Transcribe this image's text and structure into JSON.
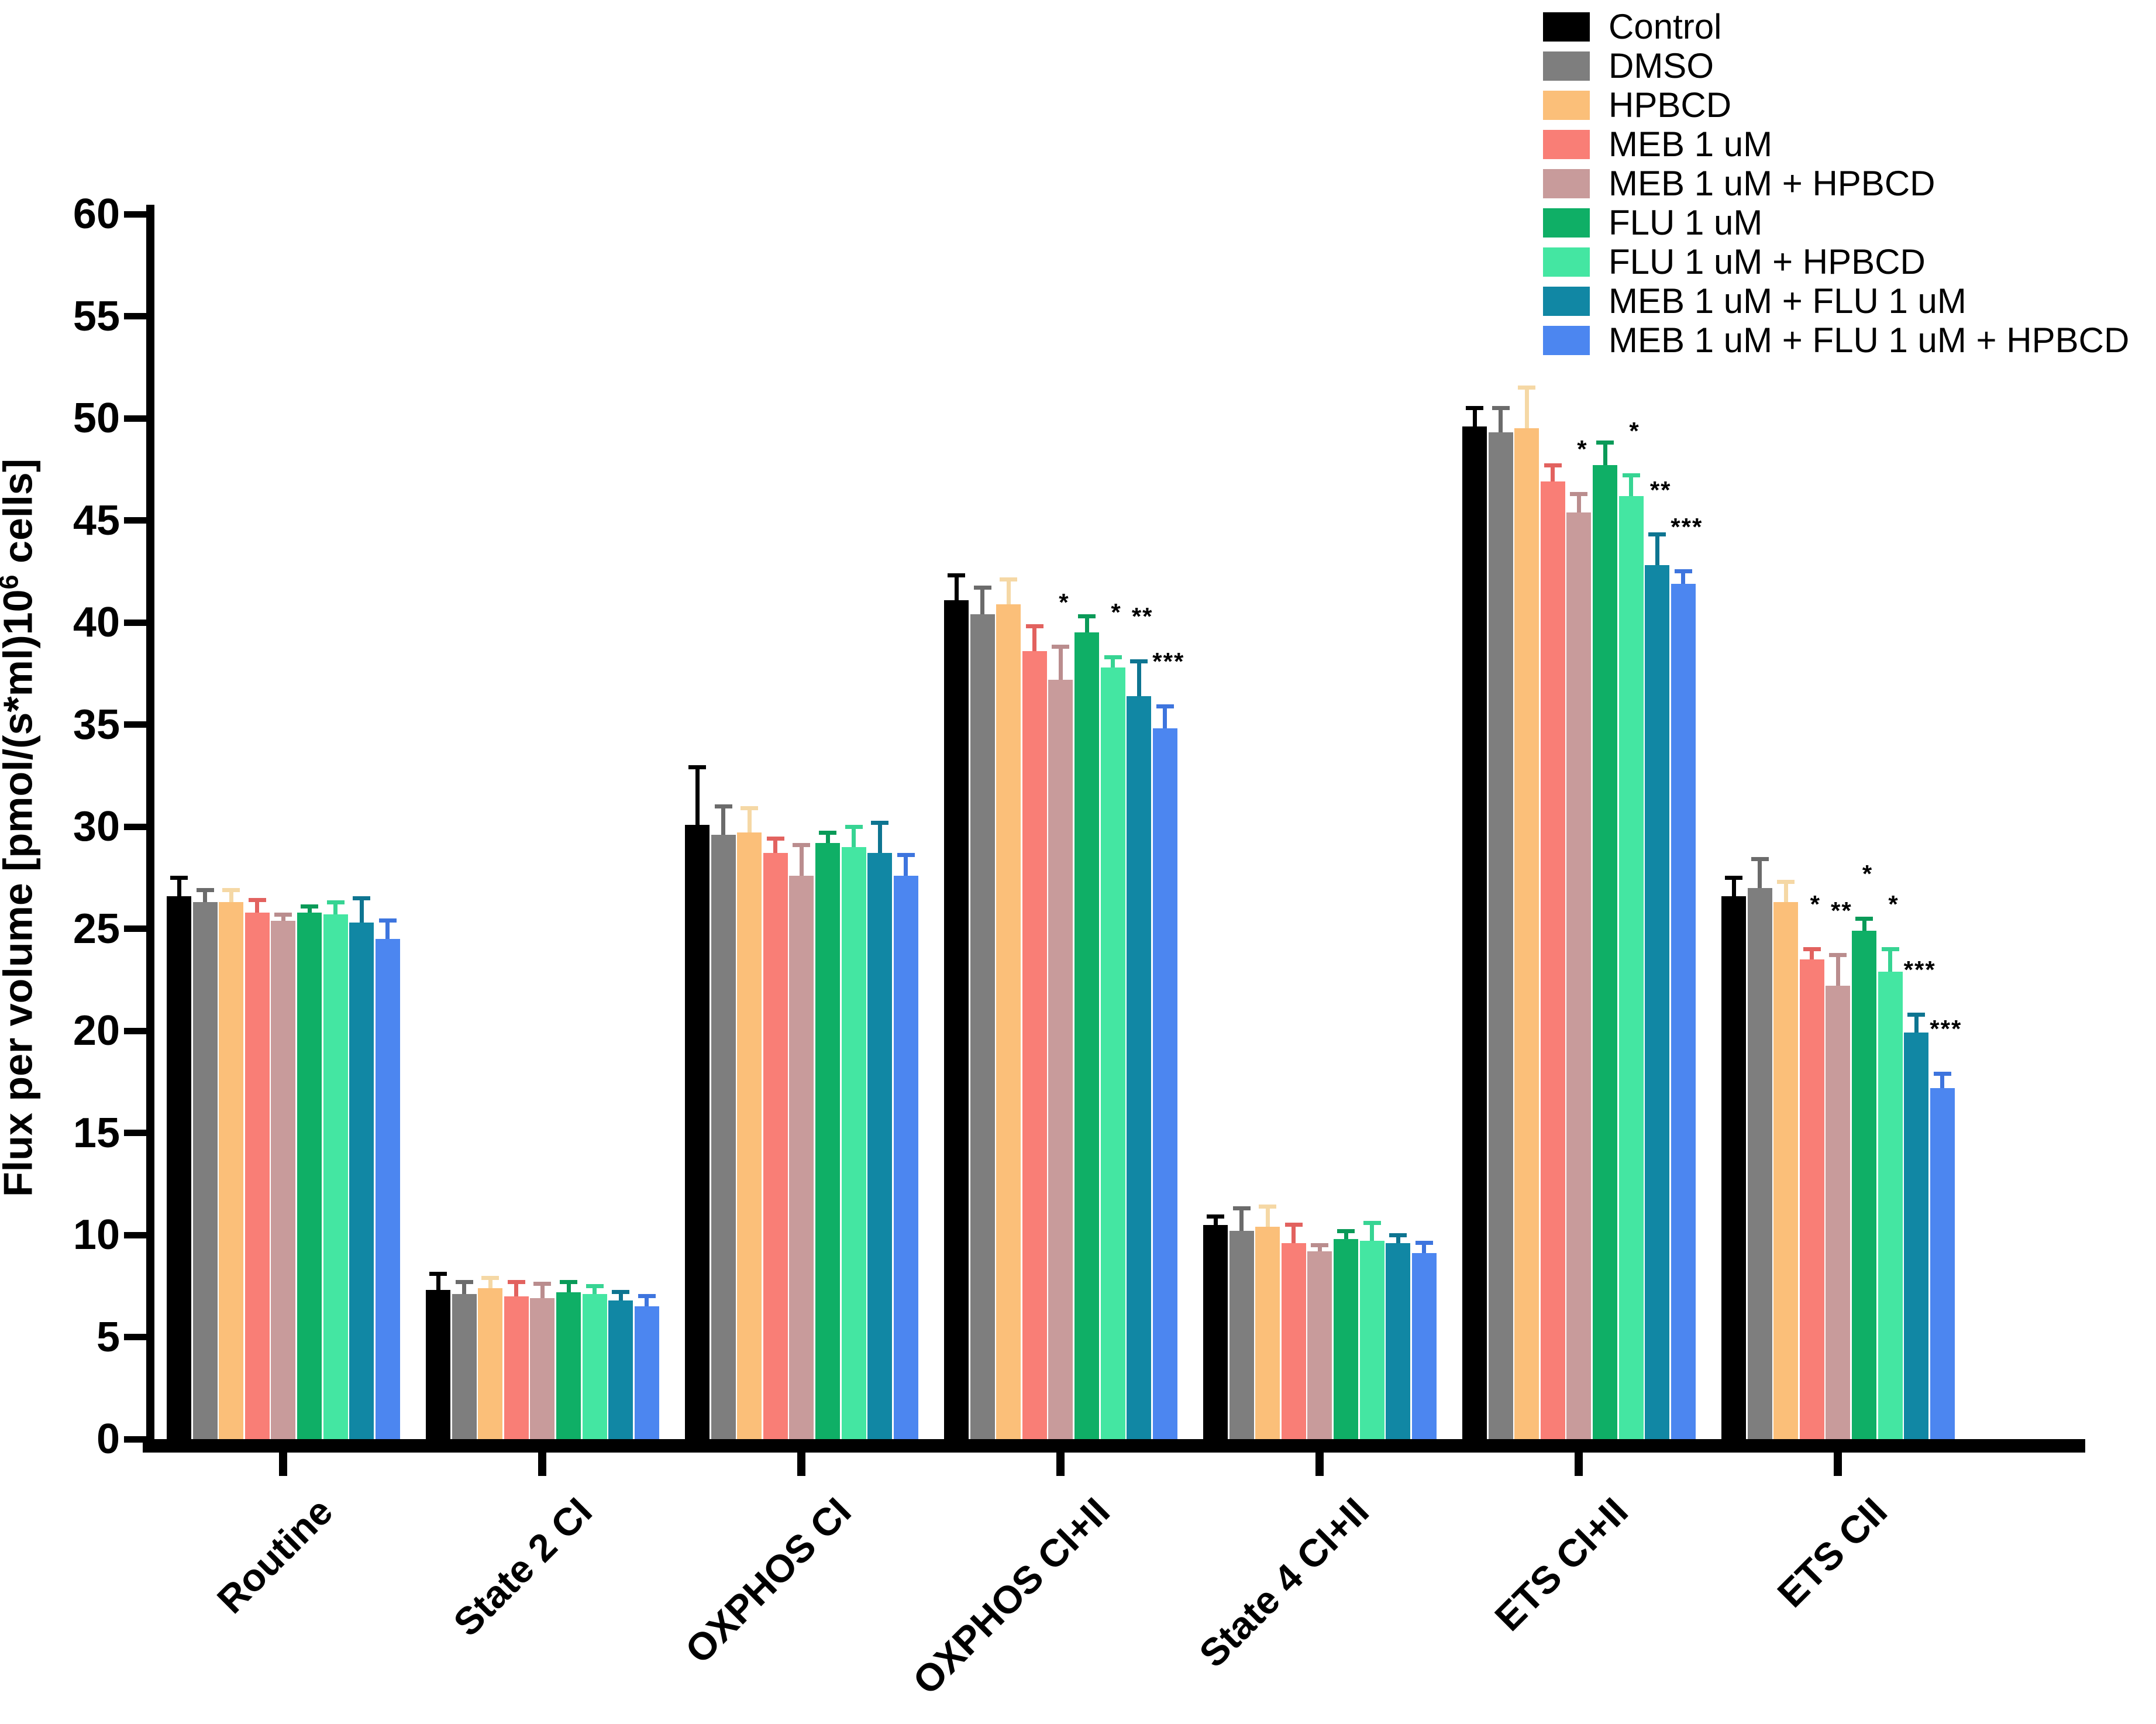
{
  "chart_data": {
    "type": "bar",
    "title": "",
    "xlabel": "",
    "ylabel": "Flux per volume [pmol/(s*ml)10^6 cells]",
    "ylabel_parts": {
      "pre": "Flux per volume [pmol/(s*ml)10",
      "sup": "6",
      "post": " cells]"
    },
    "ylim": [
      0,
      60
    ],
    "yticks": [
      0,
      5,
      10,
      15,
      20,
      25,
      30,
      35,
      40,
      45,
      50,
      55,
      60
    ],
    "grid": false,
    "legend_position": "top-right",
    "categories": [
      "Routine",
      "State 2 CI",
      "OXPHOS CI",
      "OXPHOS CI+II",
      "State 4 CI+II",
      "ETS CI+II",
      "ETS CII"
    ],
    "series": [
      {
        "name": "Control",
        "color": "#000000",
        "error_color": "#000000",
        "values": [
          26.6,
          7.3,
          30.1,
          41.1,
          10.5,
          49.6,
          26.6
        ],
        "errors": [
          0.9,
          0.8,
          2.8,
          1.2,
          0.4,
          0.9,
          0.9
        ]
      },
      {
        "name": "DMSO",
        "color": "#7E7E7E",
        "error_color": "#6B6B6B",
        "values": [
          26.3,
          7.1,
          29.6,
          40.4,
          10.2,
          49.3,
          27.0
        ],
        "errors": [
          0.6,
          0.6,
          1.4,
          1.3,
          1.1,
          1.2,
          1.4
        ]
      },
      {
        "name": "HPBCD",
        "color": "#FBBF79",
        "error_color": "#F5D8A5",
        "values": [
          26.3,
          7.4,
          29.7,
          40.9,
          10.4,
          49.5,
          26.3
        ],
        "errors": [
          0.6,
          0.5,
          1.2,
          1.2,
          1.0,
          2.0,
          1.0
        ]
      },
      {
        "name": "MEB 1 uM",
        "color": "#F97E76",
        "error_color": "#E2625F",
        "values": [
          25.8,
          7.0,
          28.7,
          38.6,
          9.6,
          46.9,
          23.5
        ],
        "errors": [
          0.6,
          0.7,
          0.7,
          1.2,
          0.9,
          0.8,
          0.5
        ]
      },
      {
        "name": "MEB 1 uM + HPBCD",
        "color": "#C89B9B",
        "error_color": "#BA8D8E",
        "values": [
          25.4,
          6.9,
          27.6,
          37.2,
          9.2,
          45.4,
          22.2
        ],
        "errors": [
          0.3,
          0.7,
          1.5,
          1.6,
          0.3,
          0.9,
          1.5
        ]
      },
      {
        "name": "FLU 1 uM",
        "color": "#0FAF66",
        "error_color": "#0A9A58",
        "values": [
          25.8,
          7.2,
          29.2,
          39.5,
          9.8,
          47.7,
          24.9
        ],
        "errors": [
          0.3,
          0.5,
          0.5,
          0.8,
          0.4,
          1.1,
          0.6
        ]
      },
      {
        "name": "FLU 1 uM + HPBCD",
        "color": "#44E6A2",
        "error_color": "#37D493",
        "values": [
          25.7,
          7.1,
          29.0,
          37.8,
          9.7,
          46.2,
          22.9
        ],
        "errors": [
          0.6,
          0.4,
          1.0,
          0.5,
          0.9,
          1.0,
          1.1
        ]
      },
      {
        "name": "MEB 1 uM + FLU 1 uM",
        "color": "#1187A4",
        "error_color": "#0E7591",
        "values": [
          25.3,
          6.8,
          28.7,
          36.4,
          9.6,
          42.8,
          19.9
        ],
        "errors": [
          1.2,
          0.4,
          1.5,
          1.7,
          0.4,
          1.5,
          0.9
        ]
      },
      {
        "name": "MEB 1 uM + FLU 1 uM + HPBCD",
        "color": "#4C86F0",
        "error_color": "#3E75DE",
        "values": [
          24.5,
          6.5,
          27.6,
          34.8,
          9.1,
          41.9,
          17.2
        ],
        "errors": [
          0.9,
          0.5,
          1.0,
          1.1,
          0.5,
          0.6,
          0.7
        ]
      }
    ],
    "significance": [
      {
        "category": "OXPHOS CI+II",
        "series": "MEB 1 uM + HPBCD",
        "stars": "*"
      },
      {
        "category": "OXPHOS CI+II",
        "series": "FLU 1 uM + HPBCD",
        "stars": "*"
      },
      {
        "category": "OXPHOS CI+II",
        "series": "MEB 1 uM + FLU 1 uM",
        "stars": "**"
      },
      {
        "category": "OXPHOS CI+II",
        "series": "MEB 1 uM + FLU 1 uM + HPBCD",
        "stars": "***"
      },
      {
        "category": "ETS CI+II",
        "series": "MEB 1 uM + HPBCD",
        "stars": "*"
      },
      {
        "category": "ETS CI+II",
        "series": "FLU 1 uM + HPBCD",
        "stars": "*"
      },
      {
        "category": "ETS CI+II",
        "series": "MEB 1 uM + FLU 1 uM",
        "stars": "**"
      },
      {
        "category": "ETS CI+II",
        "series": "MEB 1 uM + FLU 1 uM + HPBCD",
        "stars": "***"
      },
      {
        "category": "ETS CII",
        "series": "MEB 1 uM",
        "stars": "*"
      },
      {
        "category": "ETS CII",
        "series": "MEB 1 uM + HPBCD",
        "stars": "**"
      },
      {
        "category": "ETS CII",
        "series": "FLU 1 uM",
        "stars": "*"
      },
      {
        "category": "ETS CII",
        "series": "FLU 1 uM + HPBCD",
        "stars": "*"
      },
      {
        "category": "ETS CII",
        "series": "MEB 1 uM + FLU 1 uM",
        "stars": "***"
      },
      {
        "category": "ETS CII",
        "series": "MEB 1 uM + FLU 1 uM + HPBCD",
        "stars": "***"
      }
    ]
  }
}
